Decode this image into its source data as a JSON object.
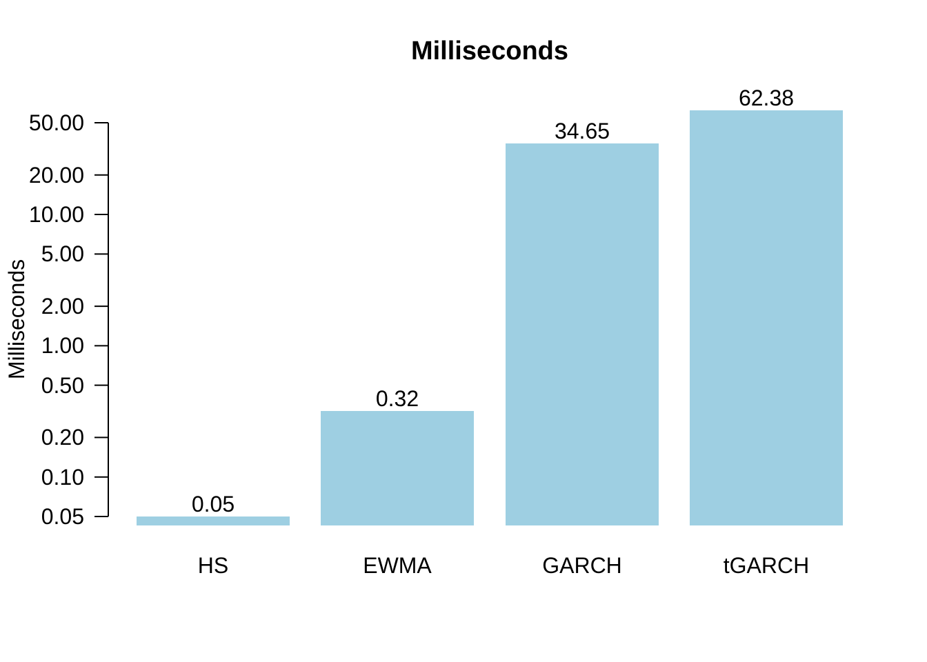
{
  "chart_data": {
    "type": "bar",
    "title": "Milliseconds",
    "xlabel": "",
    "ylabel": "Milliseconds",
    "categories": [
      "HS",
      "EWMA",
      "GARCH",
      "tGARCH"
    ],
    "values": [
      0.05,
      0.32,
      34.65,
      62.38
    ],
    "value_labels": [
      "0.05",
      "0.32",
      "34.65",
      "62.38"
    ],
    "y_scale": "log",
    "ylim": [
      0.05,
      50
    ],
    "y_ticks": [
      {
        "value": 50,
        "label": "50.00"
      },
      {
        "value": 20,
        "label": "20.00"
      },
      {
        "value": 10,
        "label": "10.00"
      },
      {
        "value": 5,
        "label": "5.00"
      },
      {
        "value": 2,
        "label": "2.00"
      },
      {
        "value": 1,
        "label": "1.00"
      },
      {
        "value": 0.5,
        "label": "0.50"
      },
      {
        "value": 0.2,
        "label": "0.20"
      },
      {
        "value": 0.1,
        "label": "0.10"
      },
      {
        "value": 0.05,
        "label": "0.05"
      }
    ],
    "grid": false,
    "legend_position": "none",
    "colors": {
      "bar_fill": "#9ECFE2",
      "text": "#000000",
      "axis": "#000000",
      "background": "#FFFFFF"
    }
  }
}
